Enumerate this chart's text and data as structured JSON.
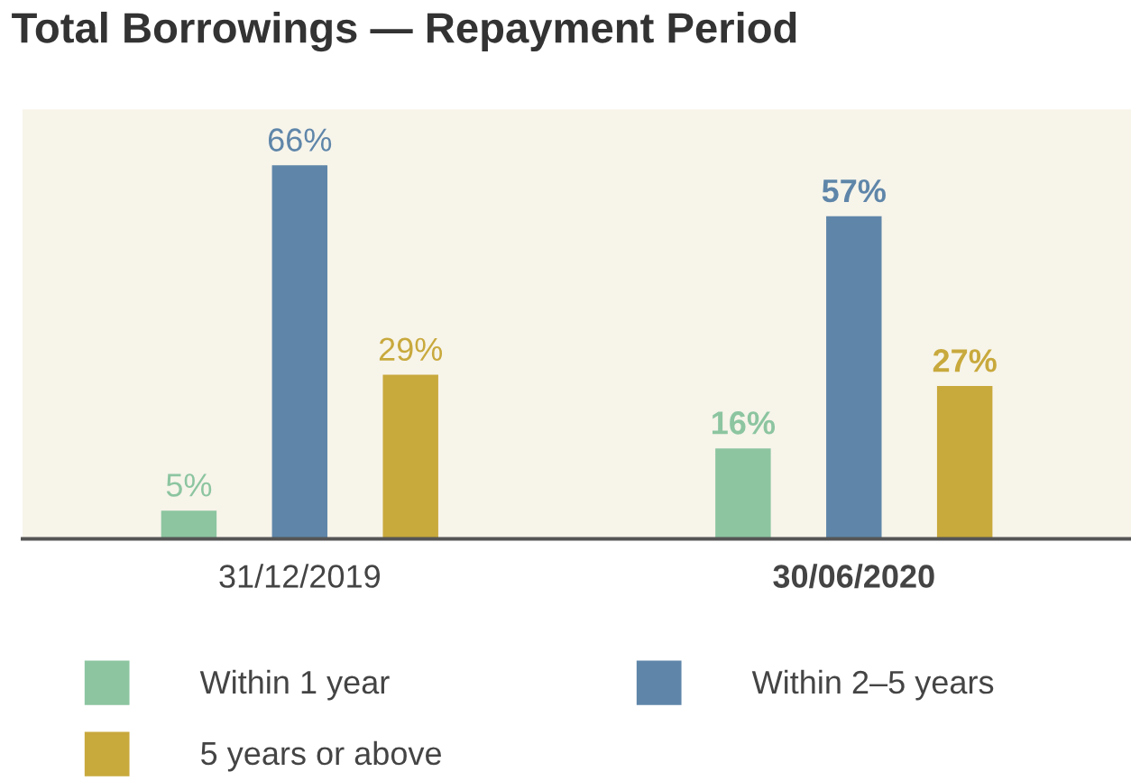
{
  "chart_data": {
    "type": "bar",
    "title": "Total Borrowings — Repayment Period",
    "categories": [
      "31/12/2019",
      "30/06/2020"
    ],
    "series": [
      {
        "name": "Within 1 year",
        "color": "#8cc5a0",
        "values": [
          5,
          16
        ],
        "value_labels": [
          "5%",
          "16%"
        ]
      },
      {
        "name": "Within 2–5 years",
        "color": "#5f86a9",
        "values": [
          66,
          57
        ],
        "value_labels": [
          "66%",
          "57%"
        ]
      },
      {
        "name": "5 years or above",
        "color": "#c8a93c",
        "values": [
          29,
          27
        ],
        "value_labels": [
          "29%",
          "27%"
        ]
      }
    ],
    "legend": "bottom",
    "grid": false
  }
}
